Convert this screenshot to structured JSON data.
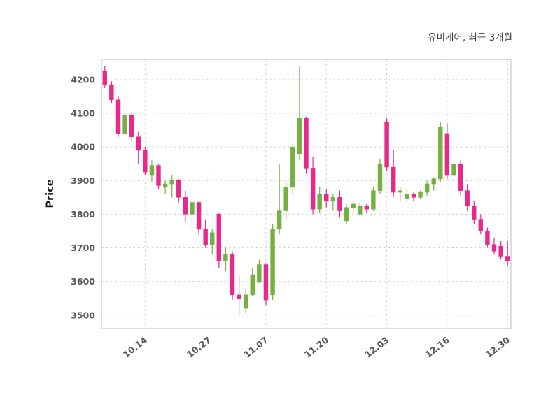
{
  "title": "유비케어, 최근 3개월",
  "chart_data": {
    "type": "candlestick",
    "title": "유비케어, 최근 3개월",
    "ylabel": "Price",
    "xlabel": "",
    "ylim": [
      3460,
      4260
    ],
    "grid": true,
    "legend": "none",
    "y_ticks": [
      3500,
      3600,
      3700,
      3800,
      3900,
      4000,
      4100,
      4200
    ],
    "x_tick_labels": [
      "10.14",
      "10.27",
      "11.07",
      "11.20",
      "12.03",
      "12.16",
      "12.30"
    ],
    "x_tick_indices": [
      6,
      15.5,
      24,
      33,
      42,
      51,
      60
    ],
    "colors": {
      "up": "#76b041",
      "down": "#e8298a",
      "grid": "#cfcfcf",
      "border": "#c9c9c9",
      "tick_text": "#595959",
      "title_text": "#3a3a3a",
      "background": "#ffffff"
    },
    "ohlc_fields": [
      "date",
      "open",
      "high",
      "low",
      "close"
    ],
    "series": [
      [
        "10.02",
        4225,
        4240,
        4175,
        4185
      ],
      [
        "10.04",
        4185,
        4195,
        4130,
        4140
      ],
      [
        "10.07",
        4140,
        4150,
        4030,
        4040
      ],
      [
        "10.08",
        4040,
        4105,
        4035,
        4095
      ],
      [
        "10.10",
        4095,
        4100,
        4020,
        4030
      ],
      [
        "10.11",
        4030,
        4045,
        3950,
        3990
      ],
      [
        "10.14",
        3990,
        4000,
        3915,
        3925
      ],
      [
        "10.15",
        3915,
        3960,
        3895,
        3945
      ],
      [
        "10.16",
        3945,
        3950,
        3875,
        3885
      ],
      [
        "10.17",
        3880,
        3900,
        3860,
        3890
      ],
      [
        "10.18",
        3890,
        3915,
        3850,
        3900
      ],
      [
        "10.21",
        3900,
        3905,
        3835,
        3850
      ],
      [
        "10.22",
        3850,
        3870,
        3775,
        3800
      ],
      [
        "10.23",
        3800,
        3845,
        3760,
        3835
      ],
      [
        "10.24",
        3835,
        3840,
        3740,
        3755
      ],
      [
        "10.25",
        3755,
        3785,
        3700,
        3710
      ],
      [
        "10.28",
        3710,
        3755,
        3680,
        3745
      ],
      [
        "10.29",
        3800,
        3805,
        3640,
        3660
      ],
      [
        "10.30",
        3660,
        3700,
        3630,
        3680
      ],
      [
        "10.31",
        3680,
        3690,
        3545,
        3560
      ],
      [
        "11.01",
        3560,
        3620,
        3500,
        3550
      ],
      [
        "11.04",
        3520,
        3580,
        3505,
        3560
      ],
      [
        "11.05",
        3560,
        3640,
        3555,
        3620
      ],
      [
        "11.06",
        3600,
        3665,
        3595,
        3650
      ],
      [
        "11.07",
        3650,
        3655,
        3530,
        3545
      ],
      [
        "11.08",
        3560,
        3770,
        3545,
        3755
      ],
      [
        "11.11",
        3755,
        3950,
        3740,
        3810
      ],
      [
        "11.12",
        3810,
        3900,
        3780,
        3880
      ],
      [
        "11.13",
        3880,
        4010,
        3860,
        4000
      ],
      [
        "11.14",
        3980,
        4240,
        3960,
        4085
      ],
      [
        "11.15",
        4085,
        4090,
        3920,
        3935
      ],
      [
        "11.18",
        3935,
        3970,
        3800,
        3815
      ],
      [
        "11.19",
        3815,
        3880,
        3805,
        3860
      ],
      [
        "11.20",
        3860,
        3875,
        3820,
        3840
      ],
      [
        "11.21",
        3840,
        3860,
        3810,
        3850
      ],
      [
        "11.22",
        3850,
        3870,
        3790,
        3810
      ],
      [
        "11.25",
        3780,
        3830,
        3770,
        3820
      ],
      [
        "11.26",
        3820,
        3840,
        3800,
        3830
      ],
      [
        "11.27",
        3800,
        3835,
        3795,
        3825
      ],
      [
        "11.28",
        3825,
        3830,
        3805,
        3815
      ],
      [
        "11.29",
        3815,
        3880,
        3810,
        3870
      ],
      [
        "12.02",
        3870,
        3965,
        3860,
        3950
      ],
      [
        "12.03",
        4075,
        4085,
        3930,
        3940
      ],
      [
        "12.04",
        3940,
        3990,
        3850,
        3865
      ],
      [
        "12.05",
        3865,
        3880,
        3840,
        3870
      ],
      [
        "12.06",
        3845,
        3875,
        3835,
        3860
      ],
      [
        "12.09",
        3860,
        3865,
        3840,
        3850
      ],
      [
        "12.10",
        3850,
        3870,
        3845,
        3865
      ],
      [
        "12.11",
        3865,
        3900,
        3855,
        3890
      ],
      [
        "12.12",
        3890,
        3910,
        3870,
        3905
      ],
      [
        "12.13",
        3905,
        4075,
        3895,
        4060
      ],
      [
        "12.16",
        4040,
        4070,
        3905,
        3915
      ],
      [
        "12.17",
        3915,
        3965,
        3900,
        3950
      ],
      [
        "12.18",
        3950,
        3960,
        3855,
        3870
      ],
      [
        "12.19",
        3870,
        3890,
        3810,
        3825
      ],
      [
        "12.20",
        3825,
        3840,
        3770,
        3785
      ],
      [
        "12.23",
        3785,
        3800,
        3740,
        3750
      ],
      [
        "12.24",
        3750,
        3760,
        3700,
        3710
      ],
      [
        "12.26",
        3710,
        3730,
        3680,
        3690
      ],
      [
        "12.27",
        3705,
        3720,
        3665,
        3675
      ],
      [
        "12.30",
        3675,
        3720,
        3645,
        3660
      ]
    ]
  }
}
